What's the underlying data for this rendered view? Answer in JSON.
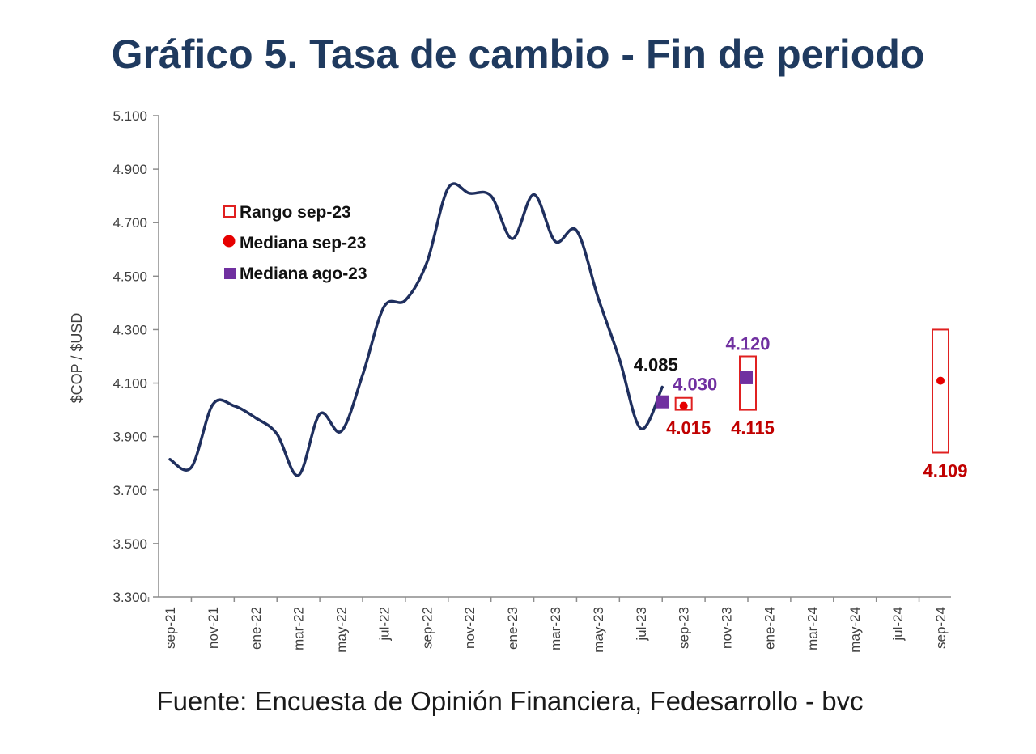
{
  "chart_data": {
    "type": "line",
    "title": "Gráfico 5. Tasa de cambio - Fin de periodo",
    "source": "Fuente: Encuesta de Opinión Financiera, Fedesarrollo - bvc",
    "ylabel": "$COP / $USD",
    "ylim": [
      3300,
      5100
    ],
    "yticks": [
      3300,
      3500,
      3700,
      3900,
      4100,
      4300,
      4500,
      4700,
      4900,
      5100
    ],
    "ytick_labels": [
      "3.300",
      "3.500",
      "3.700",
      "3.900",
      "4.100",
      "4.300",
      "4.500",
      "4.700",
      "4.900",
      "5.100"
    ],
    "x_tick_labels": [
      "sep-21",
      "nov-21",
      "ene-22",
      "mar-22",
      "may-22",
      "jul-22",
      "sep-22",
      "nov-22",
      "ene-23",
      "mar-23",
      "may-23",
      "jul-23",
      "sep-23",
      "nov-23",
      "ene-24",
      "mar-24",
      "may-24",
      "jul-24",
      "sep-24"
    ],
    "grid": false,
    "series": [
      {
        "kind": "line",
        "color": "#1f2f5e",
        "points": [
          [
            "sep-21",
            3815
          ],
          [
            "oct-21",
            3785
          ],
          [
            "nov-21",
            4020
          ],
          [
            "dic-21",
            4015
          ],
          [
            "ene-22",
            3970
          ],
          [
            "feb-22",
            3910
          ],
          [
            "mar-22",
            3755
          ],
          [
            "abr-22",
            3985
          ],
          [
            "may-22",
            3920
          ],
          [
            "jun-22",
            4130
          ],
          [
            "jul-22",
            4385
          ],
          [
            "ago-22",
            4410
          ],
          [
            "sep-22",
            4550
          ],
          [
            "oct-22",
            4830
          ],
          [
            "nov-22",
            4810
          ],
          [
            "dic-22",
            4800
          ],
          [
            "ene-23",
            4640
          ],
          [
            "feb-23",
            4805
          ],
          [
            "mar-23",
            4630
          ],
          [
            "abr-23",
            4670
          ],
          [
            "may-23",
            4420
          ],
          [
            "jun-23",
            4190
          ],
          [
            "jul-23",
            3930
          ],
          [
            "ago-23",
            4085
          ]
        ]
      }
    ],
    "forecasts": [
      {
        "period": "sep-23",
        "range_low": 4000,
        "range_high": 4045,
        "median_sep": 4015,
        "median_aug": 4030,
        "median_sep_label": "4.015",
        "median_aug_label": "4.030"
      },
      {
        "period": "dic-23",
        "range_low": 4000,
        "range_high": 4200,
        "median_sep": 4115,
        "median_aug": 4120,
        "median_sep_label": "4.115",
        "median_aug_label": "4.120"
      },
      {
        "period": "sep-24",
        "range_low": 3840,
        "range_high": 4300,
        "median_sep": 4109,
        "median_sep_label": "4.109"
      }
    ],
    "last_value_label": "4.085",
    "legend": {
      "placement": "upper-left",
      "entries": [
        {
          "label": "Rango sep-23",
          "marker": "open-square",
          "color": "#e02020"
        },
        {
          "label": "Mediana sep-23",
          "marker": "circle",
          "color": "#e60000"
        },
        {
          "label": "Mediana ago-23",
          "marker": "square",
          "color": "#7030a0"
        }
      ]
    },
    "colors": {
      "line": "#1f2f5e",
      "range": "#e02020",
      "median_sep": "#e60000",
      "median_aug": "#7030a0",
      "label_sep": "#c00000",
      "label_aug": "#7030a0",
      "label_last": "#111111"
    }
  }
}
